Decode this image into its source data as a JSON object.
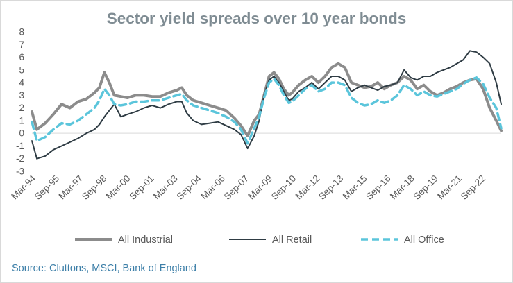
{
  "chart_data": {
    "type": "line",
    "title": "Sector yield spreads over 10 year bonds",
    "xlabel": "",
    "ylabel": "",
    "ylim": [
      -3,
      8
    ],
    "yticks": [
      -3,
      -2,
      -1,
      0,
      1,
      2,
      3,
      4,
      5,
      6,
      7,
      8
    ],
    "x_tick_labels": [
      "Mar-94",
      "Sep-95",
      "Mar-97",
      "Sep-98",
      "Mar-00",
      "Sep-01",
      "Mar-03",
      "Sep-04",
      "Mar-06",
      "Sep-07",
      "Mar-09",
      "Sep-10",
      "Mar-12",
      "Sep-13",
      "Mar-15",
      "Sep-16",
      "Mar-18",
      "Sep-19",
      "Mar-21",
      "Sep-22"
    ],
    "grid": false,
    "legend_position": "bottom",
    "series": [
      {
        "name": "All Industrial",
        "color": "#8c8c8c",
        "style": "solid",
        "x": [
          1994.2,
          1994.5,
          1995.0,
          1995.5,
          1996.0,
          1996.5,
          1997.0,
          1997.5,
          1998.0,
          1998.3,
          1998.6,
          1998.9,
          1999.2,
          1999.6,
          2000.0,
          2000.5,
          2001.0,
          2001.5,
          2002.0,
          2002.5,
          2003.0,
          2003.3,
          2003.6,
          2004.0,
          2004.5,
          2005.0,
          2005.5,
          2006.0,
          2006.5,
          2006.9,
          2007.3,
          2007.7,
          2008.0,
          2008.3,
          2008.6,
          2008.9,
          2009.2,
          2009.5,
          2009.8,
          2010.0,
          2010.4,
          2010.8,
          2011.2,
          2011.6,
          2012.0,
          2012.4,
          2012.8,
          2013.2,
          2013.6,
          2014.0,
          2014.4,
          2014.8,
          2015.2,
          2015.6,
          2016.0,
          2016.4,
          2016.8,
          2017.2,
          2017.6,
          2018.0,
          2018.4,
          2018.8,
          2019.2,
          2019.6,
          2020.0,
          2020.4,
          2020.8,
          2021.2,
          2021.6,
          2022.0,
          2022.4,
          2022.7
        ],
        "values": [
          1.7,
          0.3,
          0.8,
          1.5,
          2.3,
          2.0,
          2.5,
          2.7,
          3.2,
          3.6,
          4.8,
          4.0,
          3.0,
          2.9,
          2.8,
          3.0,
          3.0,
          2.9,
          2.9,
          3.2,
          3.4,
          3.6,
          3.0,
          2.6,
          2.4,
          2.2,
          2.0,
          1.8,
          1.2,
          0.6,
          -0.2,
          1.0,
          1.5,
          3.0,
          4.5,
          4.8,
          4.3,
          3.5,
          3.0,
          3.2,
          3.8,
          4.2,
          4.5,
          4.0,
          4.5,
          5.2,
          5.5,
          5.2,
          4.0,
          3.8,
          3.6,
          3.7,
          4.0,
          3.5,
          3.8,
          4.0,
          4.5,
          4.2,
          3.5,
          3.8,
          3.3,
          3.0,
          3.2,
          3.5,
          3.7,
          4.0,
          4.2,
          4.3,
          3.5,
          2.0,
          1.0,
          0.2
        ]
      },
      {
        "name": "All Retail",
        "color": "#2f3c44",
        "style": "solid",
        "x": [
          1994.2,
          1994.5,
          1995.0,
          1995.5,
          1996.0,
          1996.5,
          1997.0,
          1997.5,
          1998.0,
          1998.3,
          1998.6,
          1998.9,
          1999.2,
          1999.6,
          2000.0,
          2000.5,
          2001.0,
          2001.5,
          2002.0,
          2002.5,
          2003.0,
          2003.3,
          2003.6,
          2004.0,
          2004.5,
          2005.0,
          2005.5,
          2006.0,
          2006.5,
          2006.9,
          2007.3,
          2007.7,
          2008.0,
          2008.3,
          2008.6,
          2008.9,
          2009.2,
          2009.5,
          2009.8,
          2010.0,
          2010.4,
          2010.8,
          2011.2,
          2011.6,
          2012.0,
          2012.4,
          2012.8,
          2013.2,
          2013.6,
          2014.0,
          2014.4,
          2014.8,
          2015.2,
          2015.6,
          2016.0,
          2016.4,
          2016.8,
          2017.2,
          2017.6,
          2018.0,
          2018.4,
          2018.8,
          2019.2,
          2019.6,
          2020.0,
          2020.4,
          2020.8,
          2021.2,
          2021.6,
          2022.0,
          2022.4,
          2022.7
        ],
        "values": [
          -0.6,
          -2.0,
          -1.8,
          -1.3,
          -1.0,
          -0.7,
          -0.4,
          0.0,
          0.3,
          0.7,
          1.3,
          1.8,
          2.3,
          1.3,
          1.5,
          1.7,
          2.0,
          2.2,
          2.0,
          2.3,
          2.5,
          2.5,
          1.6,
          1.0,
          0.7,
          0.8,
          0.9,
          0.6,
          0.3,
          -0.1,
          -1.2,
          -0.2,
          1.0,
          3.0,
          4.2,
          4.5,
          4.0,
          3.3,
          2.6,
          2.7,
          3.3,
          3.6,
          4.0,
          3.5,
          4.0,
          4.5,
          4.5,
          4.2,
          3.3,
          3.6,
          3.8,
          3.6,
          3.4,
          3.7,
          3.8,
          4.0,
          5.0,
          4.4,
          4.2,
          4.5,
          4.5,
          4.8,
          5.0,
          5.2,
          5.5,
          5.8,
          6.5,
          6.4,
          6.0,
          5.5,
          4.0,
          2.3
        ]
      },
      {
        "name": "All Office",
        "color": "#5bc5db",
        "style": "dashed",
        "x": [
          1994.2,
          1994.5,
          1995.0,
          1995.5,
          1996.0,
          1996.5,
          1997.0,
          1997.5,
          1998.0,
          1998.3,
          1998.6,
          1998.9,
          1999.2,
          1999.6,
          2000.0,
          2000.5,
          2001.0,
          2001.5,
          2002.0,
          2002.5,
          2003.0,
          2003.3,
          2003.6,
          2004.0,
          2004.5,
          2005.0,
          2005.5,
          2006.0,
          2006.5,
          2006.9,
          2007.3,
          2007.7,
          2008.0,
          2008.3,
          2008.6,
          2008.9,
          2009.2,
          2009.5,
          2009.8,
          2010.0,
          2010.4,
          2010.8,
          2011.2,
          2011.6,
          2012.0,
          2012.4,
          2012.8,
          2013.2,
          2013.6,
          2014.0,
          2014.4,
          2014.8,
          2015.2,
          2015.6,
          2016.0,
          2016.4,
          2016.8,
          2017.2,
          2017.6,
          2018.0,
          2018.4,
          2018.8,
          2019.2,
          2019.6,
          2020.0,
          2020.4,
          2020.8,
          2021.2,
          2021.6,
          2022.0,
          2022.4,
          2022.7
        ],
        "values": [
          0.9,
          -0.6,
          -0.3,
          0.3,
          0.8,
          0.7,
          1.0,
          1.5,
          2.0,
          2.6,
          3.5,
          3.0,
          2.3,
          2.2,
          2.3,
          2.5,
          2.5,
          2.6,
          2.6,
          2.8,
          3.0,
          3.1,
          2.6,
          2.2,
          2.0,
          1.8,
          1.6,
          1.3,
          0.9,
          0.3,
          -0.8,
          0.4,
          1.3,
          2.8,
          4.0,
          4.3,
          3.8,
          3.0,
          2.4,
          2.5,
          3.0,
          3.5,
          3.8,
          3.3,
          3.5,
          4.0,
          4.0,
          3.8,
          2.8,
          2.4,
          2.2,
          2.3,
          2.6,
          2.4,
          2.6,
          3.0,
          3.8,
          3.5,
          3.0,
          3.3,
          3.0,
          2.9,
          3.1,
          3.3,
          3.5,
          3.9,
          4.2,
          4.4,
          3.9,
          2.8,
          2.0,
          0.4
        ]
      }
    ]
  },
  "source_text": "Source: Cluttons, MSCI, Bank of England"
}
